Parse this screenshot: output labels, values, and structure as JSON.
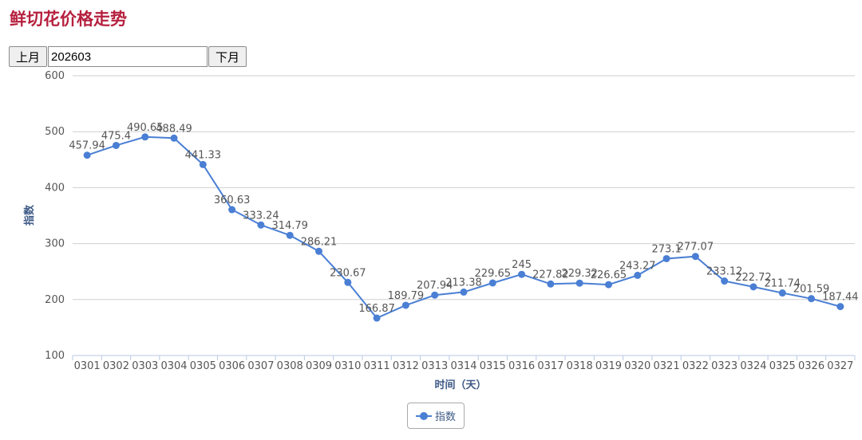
{
  "page": {
    "title": "鲜切花价格走势"
  },
  "controls": {
    "prev_label": "上月",
    "month_value": "202603",
    "next_label": "下月"
  },
  "legend": {
    "label": "指数",
    "color": "#4a7fd4"
  },
  "chart_data": {
    "type": "line",
    "title": "",
    "xlabel": "时间（天）",
    "ylabel": "指数",
    "ylim": [
      100,
      600
    ],
    "yticks": [
      100,
      200,
      300,
      400,
      500,
      600
    ],
    "grid": true,
    "legend_position": "bottom-center",
    "categories": [
      "0301",
      "0302",
      "0303",
      "0304",
      "0305",
      "0306",
      "0307",
      "0308",
      "0309",
      "0310",
      "0311",
      "0312",
      "0313",
      "0314",
      "0315",
      "0316",
      "0317",
      "0318",
      "0319",
      "0320",
      "0321",
      "0322",
      "0323",
      "0324",
      "0325",
      "0326",
      "0327"
    ],
    "series": [
      {
        "name": "指数",
        "color": "#4a7fd4",
        "values": [
          457.94,
          475.4,
          490.65,
          488.49,
          441.33,
          360.63,
          333.24,
          314.79,
          286.21,
          230.67,
          166.87,
          189.79,
          207.94,
          213.38,
          229.65,
          245,
          227.82,
          229.32,
          226.65,
          243.27,
          273.1,
          277.07,
          233.12,
          222.72,
          211.74,
          201.59,
          187.44
        ]
      }
    ]
  }
}
